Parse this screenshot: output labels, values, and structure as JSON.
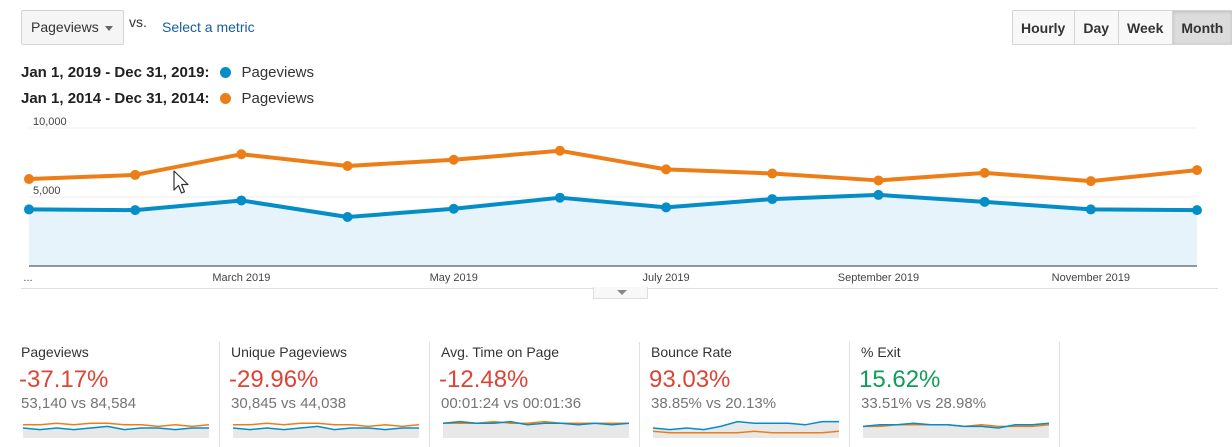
{
  "toolbar": {
    "metric_select": "Pageviews",
    "vs_label": "vs.",
    "select_metric_link": "Select a metric",
    "granularity": [
      {
        "label": "Hourly",
        "active": false
      },
      {
        "label": "Day",
        "active": false
      },
      {
        "label": "Week",
        "active": false
      },
      {
        "label": "Month",
        "active": true
      }
    ]
  },
  "legend": [
    {
      "range": "Jan 1, 2019 - Dec 31, 2019:",
      "series": "Pageviews",
      "color": "#058dc7"
    },
    {
      "range": "Jan 1, 2014 - Dec 31, 2014:",
      "series": "Pageviews",
      "color": "#ed7e17"
    }
  ],
  "chart_data": {
    "type": "line",
    "x": [
      "Jan",
      "Feb",
      "Mar",
      "Apr",
      "May",
      "Jun",
      "Jul",
      "Aug",
      "Sep",
      "Oct",
      "Nov",
      "Dec"
    ],
    "x_tick_labels": [
      {
        "index": 0,
        "label": "..."
      },
      {
        "index": 2,
        "label": "March 2019"
      },
      {
        "index": 4,
        "label": "May 2019"
      },
      {
        "index": 6,
        "label": "July 2019"
      },
      {
        "index": 8,
        "label": "September 2019"
      },
      {
        "index": 10,
        "label": "November 2019"
      }
    ],
    "y_tick_labels": [
      {
        "value": 10000,
        "label": "10,000"
      },
      {
        "value": 5000,
        "label": "5,000"
      }
    ],
    "ylim": [
      0,
      10000
    ],
    "grid": true,
    "series": [
      {
        "values": [
          4100,
          4050,
          4750,
          3550,
          4150,
          4950,
          4250,
          4850,
          5150,
          4650,
          4100,
          4050
        ],
        "color": "#058dc7",
        "area": true
      },
      {
        "values": [
          6300,
          6600,
          8100,
          7250,
          7700,
          8350,
          7000,
          6700,
          6200,
          6750,
          6150,
          6950
        ],
        "color": "#ed7e17",
        "area": false
      }
    ]
  },
  "scorecards": [
    {
      "title": "Pageviews",
      "pct": "-37.17%",
      "pct_color": "red",
      "vs": "53,140 vs 84,584",
      "spark_a": [
        5,
        4,
        5,
        4,
        5,
        6,
        4,
        5,
        5,
        4,
        5,
        5
      ],
      "spark_b": [
        7,
        7,
        8,
        7,
        8,
        8,
        7,
        7,
        6,
        7,
        6,
        7
      ]
    },
    {
      "title": "Unique Pageviews",
      "pct": "-29.96%",
      "pct_color": "red",
      "vs": "30,845 vs 44,038",
      "spark_a": [
        5,
        4,
        5,
        4,
        5,
        6,
        4,
        5,
        5,
        4,
        5,
        5
      ],
      "spark_b": [
        7,
        7,
        8,
        7,
        8,
        8,
        7,
        7,
        6,
        7,
        6,
        7
      ]
    },
    {
      "title": "Avg. Time on Page",
      "pct": "-12.48%",
      "pct_color": "red",
      "vs": "00:01:24 vs 00:01:36",
      "spark_a": [
        8,
        9,
        8,
        8,
        9,
        7,
        8,
        8,
        7,
        8,
        7,
        8
      ],
      "spark_b": [
        8,
        8,
        8,
        9,
        8,
        8,
        9,
        8,
        8,
        8,
        8,
        8
      ]
    },
    {
      "title": "Bounce Rate",
      "pct": "93.03%",
      "pct_color": "red",
      "vs": "38.85% vs 20.13%",
      "spark_a": [
        5,
        4,
        5,
        4,
        6,
        9,
        8,
        8,
        8,
        7,
        9,
        9
      ],
      "spark_b": [
        3,
        2,
        2,
        2,
        2,
        2,
        3,
        2,
        2,
        2,
        2,
        3
      ]
    },
    {
      "title": "% Exit",
      "pct": "15.62%",
      "pct_color": "green",
      "vs": "33.51% vs 28.98%",
      "spark_a": [
        6,
        7,
        7,
        8,
        7,
        7,
        6,
        6,
        5,
        7,
        7,
        8
      ],
      "spark_b": [
        6,
        6,
        7,
        7,
        7,
        7,
        6,
        7,
        6,
        6,
        6,
        7
      ]
    }
  ]
}
